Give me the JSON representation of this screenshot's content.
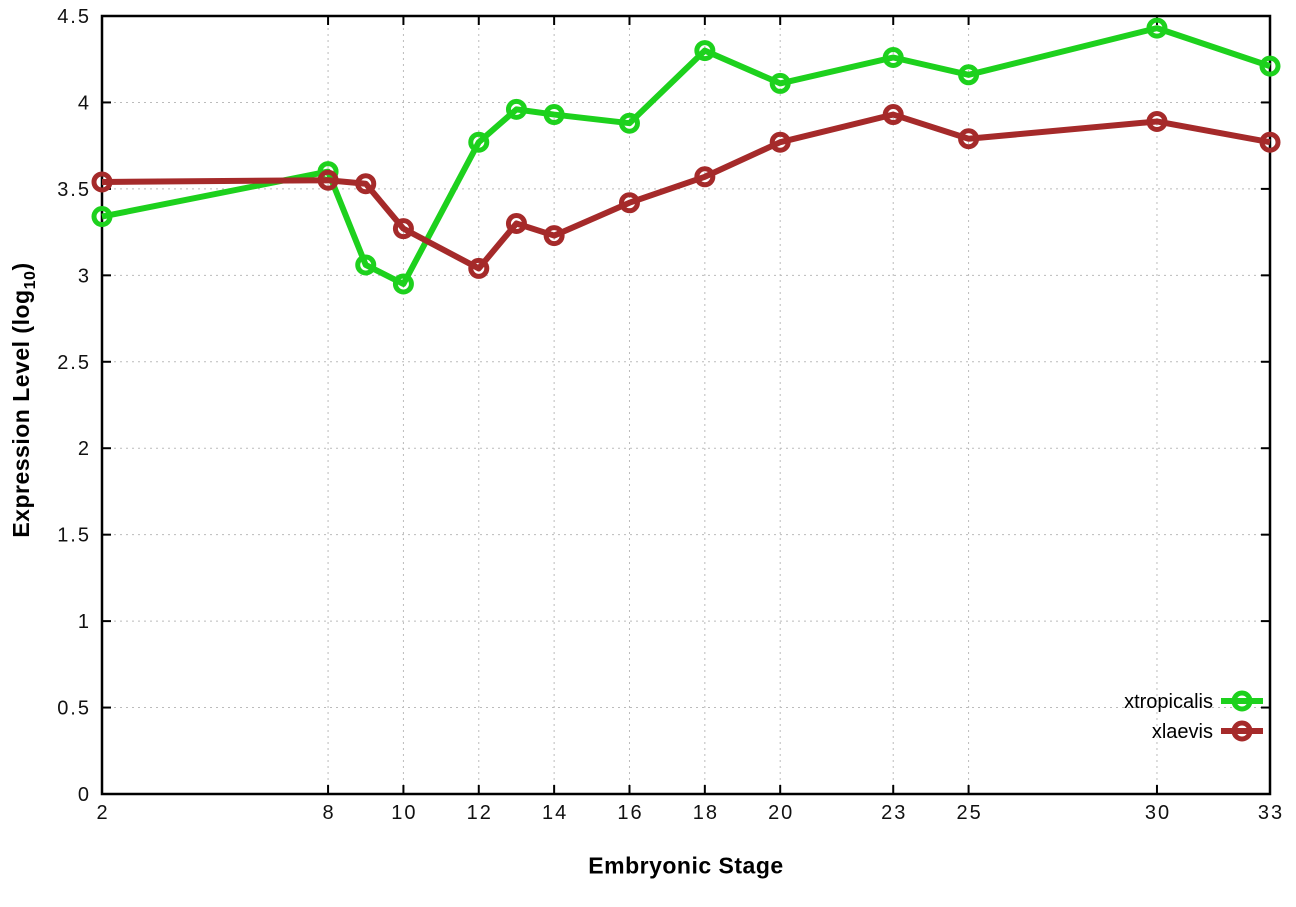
{
  "chart_data": {
    "type": "line",
    "title": "",
    "xlabel": "Embryonic Stage",
    "ylabel_text": "Expression Level (log",
    "ylabel_sub": "10",
    "ylabel_close": ")",
    "x": [
      2,
      8,
      9,
      10,
      12,
      13,
      14,
      16,
      18,
      20,
      23,
      25,
      30,
      33
    ],
    "series": [
      {
        "name": "xtropicalis",
        "color": "#1dd11d",
        "values": [
          3.34,
          3.6,
          3.06,
          2.95,
          3.77,
          3.96,
          3.93,
          3.88,
          4.3,
          4.11,
          4.26,
          4.16,
          4.43,
          4.21
        ]
      },
      {
        "name": "xlaevis",
        "color": "#a52a2a",
        "values": [
          3.54,
          3.55,
          3.53,
          3.27,
          3.04,
          3.3,
          3.23,
          3.42,
          3.57,
          3.77,
          3.93,
          3.79,
          3.89,
          3.77
        ]
      }
    ],
    "xticks": [
      2,
      8,
      10,
      12,
      14,
      16,
      18,
      20,
      23,
      25,
      30,
      33
    ],
    "yticks": [
      0,
      0.5,
      1,
      1.5,
      2,
      2.5,
      3,
      3.5,
      4,
      4.5
    ],
    "xlim": [
      2,
      33
    ],
    "ylim": [
      0,
      4.5
    ],
    "grid": true,
    "legend_position": "bottom-right"
  },
  "colors": {
    "background": "#ffffff",
    "axis": "#000000",
    "grid": "#bbbbbb",
    "tick_label": "#111111"
  }
}
